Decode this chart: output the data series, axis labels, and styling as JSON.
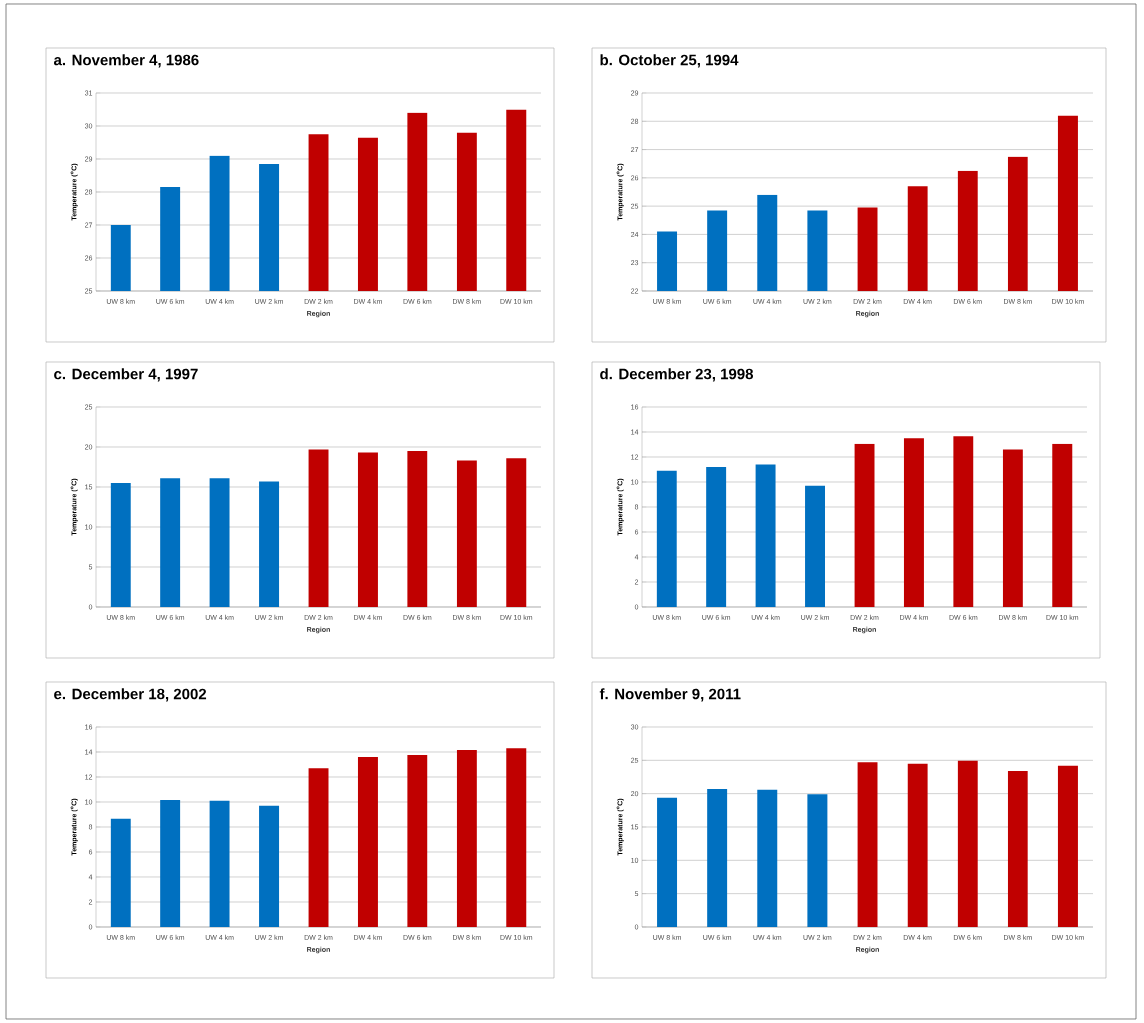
{
  "chart_data": [
    {
      "type": "bar",
      "title": "a. November 4, 1986",
      "xlabel": "Region",
      "ylabel": "Temperature ($^{o}$C)",
      "categories": [
        "UW 8 km",
        "UW 6 km",
        "UW 4 km",
        "UW 2 km",
        "DW 2 km",
        "DW 4 km",
        "DW 6 km",
        "DW 8 km",
        "DW 10 km"
      ],
      "values": [
        27.0,
        28.15,
        29.1,
        28.85,
        29.75,
        29.65,
        30.4,
        29.8,
        30.5
      ],
      "colors": [
        "#0070c0",
        "#0070c0",
        "#0070c0",
        "#0070c0",
        "#c00000",
        "#c00000",
        "#c00000",
        "#c00000",
        "#c00000"
      ],
      "ylim": [
        25,
        31
      ],
      "yticks": [
        25,
        26,
        27,
        28,
        29,
        30,
        31
      ],
      "grid": "y"
    },
    {
      "type": "bar",
      "title": "b. October 25, 1994",
      "xlabel": "Region",
      "ylabel": "Temperature ($^{o}$C)",
      "categories": [
        "UW 8 km",
        "UW 6 km",
        "UW 4 km",
        "UW 2 km",
        "DW 2 km",
        "DW 4 km",
        "DW 6 km",
        "DW 8 km",
        "DW 10 km"
      ],
      "values": [
        24.1,
        24.85,
        25.4,
        24.85,
        24.95,
        25.7,
        26.25,
        26.75,
        28.2
      ],
      "colors": [
        "#0070c0",
        "#0070c0",
        "#0070c0",
        "#0070c0",
        "#c00000",
        "#c00000",
        "#c00000",
        "#c00000",
        "#c00000"
      ],
      "ylim": [
        22,
        29
      ],
      "yticks": [
        22,
        23,
        24,
        25,
        26,
        27,
        28,
        29
      ],
      "grid": "y"
    },
    {
      "type": "bar",
      "title": "c. December 4, 1997",
      "xlabel": "Region",
      "ylabel": "Temperature ($^{o}$C)",
      "categories": [
        "UW 8 km",
        "UW 6 km",
        "UW 4 km",
        "UW 2 km",
        "DW 2 km",
        "DW 4 km",
        "DW 6 km",
        "DW 8 km",
        "DW 10 km"
      ],
      "values": [
        15.5,
        16.1,
        16.1,
        15.7,
        19.7,
        19.3,
        19.5,
        18.3,
        18.6
      ],
      "colors": [
        "#0070c0",
        "#0070c0",
        "#0070c0",
        "#0070c0",
        "#c00000",
        "#c00000",
        "#c00000",
        "#c00000",
        "#c00000"
      ],
      "ylim": [
        0,
        25
      ],
      "yticks": [
        0,
        5,
        10,
        15,
        20,
        25
      ],
      "grid": "y"
    },
    {
      "type": "bar",
      "title": "d. December 23, 1998",
      "xlabel": "Region",
      "ylabel": "Temperature ($^{o}$C)",
      "categories": [
        "UW 8 km",
        "UW 6 km",
        "UW 4 km",
        "UW 2 km",
        "DW 2 km",
        "DW 4 km",
        "DW 6 km",
        "DW 8 km",
        "DW 10 km"
      ],
      "values": [
        10.9,
        11.2,
        11.4,
        9.7,
        13.05,
        13.5,
        13.65,
        12.6,
        13.05
      ],
      "colors": [
        "#0070c0",
        "#0070c0",
        "#0070c0",
        "#0070c0",
        "#c00000",
        "#c00000",
        "#c00000",
        "#c00000",
        "#c00000"
      ],
      "ylim": [
        0,
        16
      ],
      "yticks": [
        0,
        2,
        4,
        6,
        8,
        10,
        12,
        14,
        16
      ],
      "grid": "y"
    },
    {
      "type": "bar",
      "title": "e. December 18, 2002",
      "xlabel": "Region",
      "ylabel": "Temperature ($^{o}$C)",
      "categories": [
        "UW 8 km",
        "UW 6 km",
        "UW 4 km",
        "UW 2 km",
        "DW 2 km",
        "DW 4 km",
        "DW 6 km",
        "DW 8 km",
        "DW 10 km"
      ],
      "values": [
        8.65,
        10.15,
        10.1,
        9.7,
        12.7,
        13.6,
        13.75,
        14.15,
        14.3
      ],
      "colors": [
        "#0070c0",
        "#0070c0",
        "#0070c0",
        "#0070c0",
        "#c00000",
        "#c00000",
        "#c00000",
        "#c00000",
        "#c00000"
      ],
      "ylim": [
        0,
        16
      ],
      "yticks": [
        0,
        2,
        4,
        6,
        8,
        10,
        12,
        14,
        16
      ],
      "grid": "y"
    },
    {
      "type": "bar",
      "title": "f. November 9, 2011",
      "xlabel": "Region",
      "ylabel": "Temperature ($^{o}$C)",
      "categories": [
        "UW 8 km",
        "UW 6 km",
        "UW 4 km",
        "UW 2 km",
        "DW 2 km",
        "DW 4 km",
        "DW 6 km",
        "DW 8 km",
        "DW 10 km"
      ],
      "values": [
        19.4,
        20.7,
        20.6,
        19.9,
        24.7,
        24.5,
        24.95,
        23.4,
        24.2
      ],
      "colors": [
        "#0070c0",
        "#0070c0",
        "#0070c0",
        "#0070c0",
        "#c00000",
        "#c00000",
        "#c00000",
        "#c00000",
        "#c00000"
      ],
      "ylim": [
        0,
        30
      ],
      "yticks": [
        0,
        5,
        10,
        15,
        20,
        25,
        30
      ],
      "grid": "y"
    }
  ]
}
